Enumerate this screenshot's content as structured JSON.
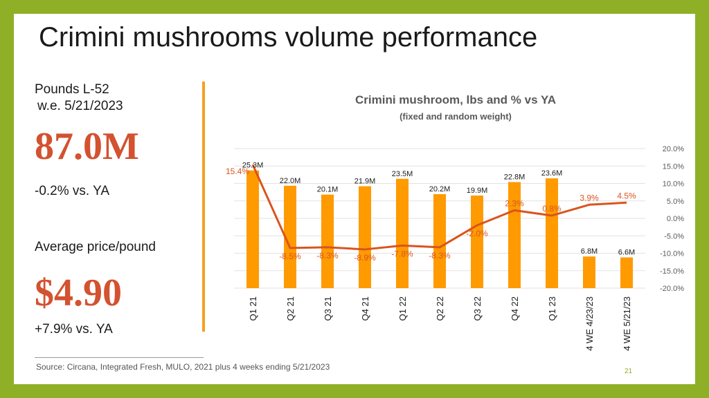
{
  "slide": {
    "title": "Crimini mushrooms volume performance",
    "kpi_label_line1": "Pounds L-52",
    "kpi_label_line2": "w.e. 5/21/2023",
    "volume_value": "87.0M",
    "volume_change": "-0.2% vs. YA",
    "price_label": "Average price/pound",
    "price_value": "$4.90",
    "price_change": "+7.9% vs. YA",
    "source": "Source: Circana, Integrated Fresh, MULO, 2021 plus 4 weeks ending 5/21/2023",
    "page_number": "21"
  },
  "chart_data": {
    "type": "bar",
    "title": "Crimini mushroom, lbs and % vs YA",
    "subtitle": "(fixed and random weight)",
    "categories": [
      "Q1 21",
      "Q2 21",
      "Q3 21",
      "Q4 21",
      "Q1 22",
      "Q2 22",
      "Q3 22",
      "Q4 22",
      "Q1 23",
      "4 WE 4/23/23",
      "4 WE 5/21/23"
    ],
    "series": [
      {
        "type": "bar",
        "values": [
          25.3,
          22.0,
          20.1,
          21.9,
          23.5,
          20.2,
          19.9,
          22.8,
          23.6,
          6.8,
          6.6
        ],
        "labels": [
          "25.3M",
          "22.0M",
          "20.1M",
          "21.9M",
          "23.5M",
          "20.2M",
          "19.9M",
          "22.8M",
          "23.6M",
          "6.8M",
          "6.6M"
        ],
        "color": "#ff9a00"
      },
      {
        "type": "line",
        "axis": "right",
        "values": [
          15.4,
          -8.5,
          -8.3,
          -8.9,
          -7.8,
          -8.3,
          -2.0,
          2.3,
          0.8,
          3.9,
          4.5
        ],
        "labels": [
          "15.4%",
          "-8.5%",
          "-8.3%",
          "-8.9%",
          "-7.8%",
          "-8.3%",
          "-2.0%",
          "2.3%",
          "0.8%",
          "3.9%",
          "4.5%"
        ],
        "color": "#d9541e"
      }
    ],
    "y_left_range": [
      0,
      30
    ],
    "y_right_range": [
      -20,
      20
    ],
    "y_right_ticks": [
      "20.0%",
      "15.0%",
      "10.0%",
      "5.0%",
      "0.0%",
      "-5.0%",
      "-10.0%",
      "-15.0%",
      "-20.0%"
    ],
    "grid": true
  }
}
